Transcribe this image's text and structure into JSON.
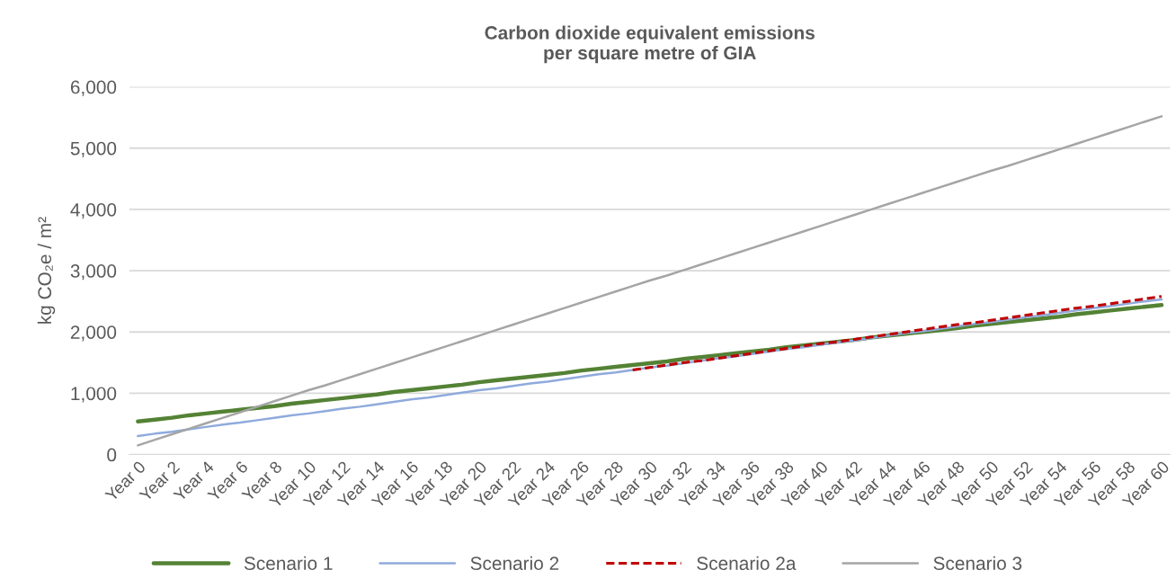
{
  "chart_data": {
    "type": "line",
    "title": "Carbon dioxide equivalent emissions\nper square metre of GIA",
    "ylabel": "kg CO₂e / m²",
    "categories": [
      "Year 0",
      null,
      "Year 2",
      null,
      "Year 4",
      null,
      "Year 6",
      null,
      "Year 8",
      null,
      "Year 10",
      null,
      "Year 12",
      null,
      "Year 14",
      null,
      "Year 16",
      null,
      "Year 18",
      null,
      "Year 20",
      null,
      "Year 22",
      null,
      "Year 24",
      null,
      "Year 26",
      null,
      "Year 28",
      null,
      "Year 30",
      null,
      "Year 32",
      null,
      "Year 34",
      null,
      "Year 36",
      null,
      "Year 38",
      null,
      "Year 40",
      null,
      "Year 42",
      null,
      "Year 44",
      null,
      "Year 46",
      null,
      "Year 48",
      null,
      "Year 50",
      null,
      "Year 52",
      null,
      "Year 54",
      null,
      "Year 56",
      null,
      "Year 58",
      null,
      "Year 60"
    ],
    "series": [
      {
        "name": "Scenario 1",
        "color": "#548235",
        "line_style": "solid",
        "values": [
          540,
          570,
          600,
          640,
          670,
          700,
          730,
          760,
          790,
          830,
          860,
          890,
          920,
          950,
          980,
          1020,
          1050,
          1080,
          1110,
          1140,
          1180,
          1210,
          1240,
          1270,
          1300,
          1330,
          1370,
          1400,
          1430,
          1460,
          1490,
          1520,
          1560,
          1590,
          1620,
          1650,
          1680,
          1710,
          1750,
          1780,
          1810,
          1840,
          1870,
          1910,
          1940,
          1970,
          2000,
          2030,
          2060,
          2100,
          2130,
          2160,
          2190,
          2220,
          2250,
          2290,
          2320,
          2350,
          2380,
          2410,
          2440
        ]
      },
      {
        "name": "Scenario 2",
        "color": "#8faadc",
        "line_style": "solid",
        "values": [
          300,
          340,
          370,
          410,
          450,
          490,
          520,
          560,
          600,
          640,
          670,
          710,
          750,
          780,
          820,
          860,
          900,
          930,
          970,
          1010,
          1050,
          1080,
          1120,
          1160,
          1190,
          1230,
          1270,
          1310,
          1340,
          1380,
          1420,
          1450,
          1490,
          1530,
          1570,
          1600,
          1640,
          1680,
          1720,
          1750,
          1790,
          1830,
          1860,
          1900,
          1940,
          1980,
          2010,
          2050,
          2090,
          2130,
          2160,
          2200,
          2240,
          2270,
          2310,
          2350,
          2390,
          2420,
          2460,
          2500,
          2530
        ]
      },
      {
        "name": "Scenario 2a",
        "color": "#c00000",
        "line_style": "dashed",
        "values": [
          null,
          null,
          null,
          null,
          null,
          null,
          null,
          null,
          null,
          null,
          null,
          null,
          null,
          null,
          null,
          null,
          null,
          null,
          null,
          null,
          null,
          null,
          null,
          null,
          null,
          null,
          null,
          null,
          null,
          1380,
          1420,
          1460,
          1500,
          1530,
          1570,
          1610,
          1650,
          1690,
          1730,
          1770,
          1810,
          1840,
          1880,
          1920,
          1960,
          2000,
          2040,
          2080,
          2120,
          2150,
          2190,
          2230,
          2270,
          2310,
          2350,
          2390,
          2420,
          2460,
          2500,
          2540,
          2580
        ]
      },
      {
        "name": "Scenario 3",
        "color": "#a5a5a5",
        "line_style": "solid",
        "values": [
          150,
          240,
          330,
          420,
          510,
          600,
          690,
          780,
          870,
          960,
          1050,
          1130,
          1220,
          1310,
          1400,
          1490,
          1580,
          1670,
          1760,
          1850,
          1940,
          2030,
          2120,
          2210,
          2300,
          2390,
          2480,
          2570,
          2660,
          2750,
          2840,
          2920,
          3010,
          3100,
          3190,
          3280,
          3370,
          3460,
          3550,
          3640,
          3730,
          3820,
          3910,
          4000,
          4090,
          4180,
          4270,
          4360,
          4450,
          4540,
          4630,
          4710,
          4800,
          4890,
          4980,
          5070,
          5160,
          5250,
          5340,
          5430,
          5520
        ]
      }
    ],
    "ylim": [
      0,
      6000
    ],
    "yticks": [
      0,
      {
        "value": 1000,
        "label": "1,000"
      },
      {
        "value": 2000,
        "label": "2,000"
      },
      {
        "value": 3000,
        "label": "3,000"
      },
      {
        "value": 4000,
        "label": "4,000"
      },
      {
        "value": 5000,
        "label": "5,000"
      },
      {
        "value": 6000,
        "label": "6,000"
      }
    ],
    "grid": "y",
    "legend": "bottom",
    "marker": "none"
  }
}
